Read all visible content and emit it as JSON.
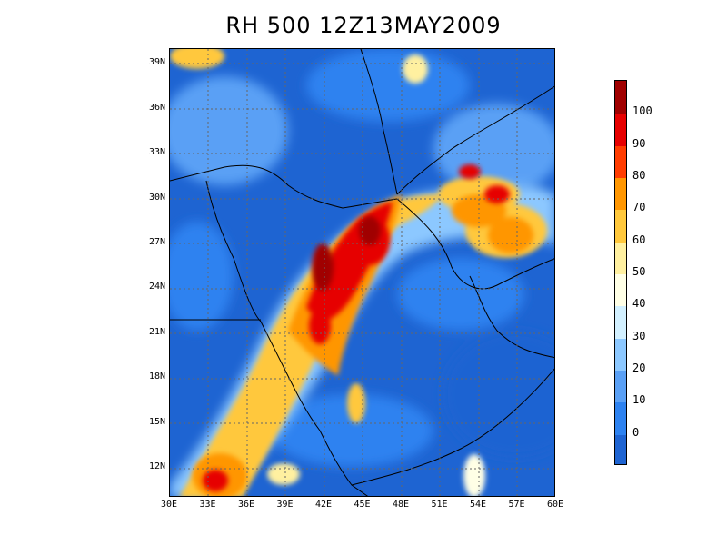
{
  "title": "RH 500  12Z13MAY2009",
  "map": {
    "lon_range": [
      30,
      60
    ],
    "lat_range": [
      10,
      40
    ],
    "lon_ticks": [
      "30E",
      "33E",
      "36E",
      "39E",
      "42E",
      "45E",
      "48E",
      "51E",
      "54E",
      "57E",
      "60E"
    ],
    "lat_ticks": [
      "39N",
      "36N",
      "33N",
      "30N",
      "27N",
      "24N",
      "21N",
      "18N",
      "15N",
      "12N"
    ],
    "grid": "dotted"
  },
  "colorbar": {
    "levels": [
      "0",
      "10",
      "20",
      "30",
      "40",
      "50",
      "60",
      "70",
      "80",
      "90",
      "100"
    ],
    "colors": [
      "#1e64d2",
      "#2d82f0",
      "#5aa0f5",
      "#8cc8ff",
      "#d2f0ff",
      "#ffffe6",
      "#fff0a0",
      "#ffc83c",
      "#ff9600",
      "#ff3c00",
      "#e60000",
      "#a00000"
    ]
  }
}
